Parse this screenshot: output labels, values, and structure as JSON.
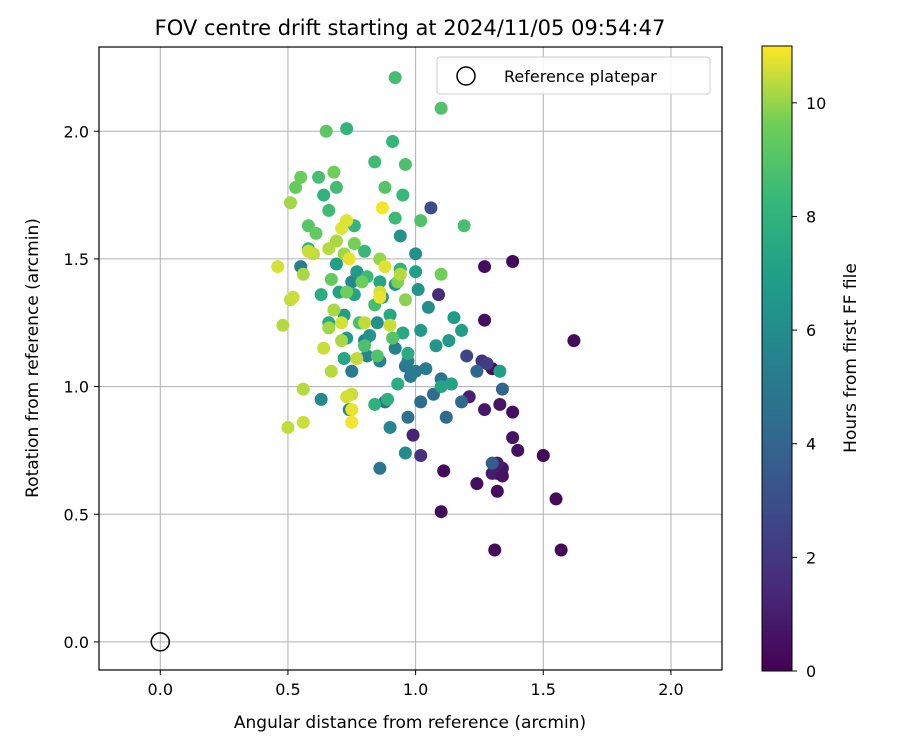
{
  "chart_data": {
    "type": "scatter",
    "title": "FOV centre drift starting at 2024/11/05 09:54:47",
    "xlabel": "Angular distance from reference (arcmin)",
    "ylabel": "Rotation from reference (arcmin)",
    "xlim": [
      -0.24,
      2.2
    ],
    "ylim": [
      -0.11,
      2.33
    ],
    "xticks": [
      0.0,
      0.5,
      1.0,
      1.5,
      2.0
    ],
    "xtick_labels": [
      "0.0",
      "0.5",
      "1.0",
      "1.5",
      "2.0"
    ],
    "yticks": [
      0.0,
      0.5,
      1.0,
      1.5,
      2.0
    ],
    "ytick_labels": [
      "0.0",
      "0.5",
      "1.0",
      "1.5",
      "2.0"
    ],
    "grid": true,
    "legend": {
      "position": "top-right",
      "label": "Reference platepar"
    },
    "reference_point": {
      "x": 0.0,
      "y": 0.0
    },
    "colorbar": {
      "label": "Hours from first FF file",
      "min": 0,
      "max": 11,
      "ticks": [
        0,
        2,
        4,
        6,
        8,
        10
      ],
      "tick_labels": [
        "0",
        "2",
        "4",
        "6",
        "8",
        "10"
      ],
      "colormap": "viridis"
    },
    "points": [
      [
        1.38,
        1.49,
        0.2
      ],
      [
        1.62,
        1.18,
        0.3
      ],
      [
        1.27,
        1.47,
        0.4
      ],
      [
        1.27,
        1.26,
        0.5
      ],
      [
        1.3,
        1.07,
        0.4
      ],
      [
        1.5,
        0.73,
        0.2
      ],
      [
        1.55,
        0.56,
        0.3
      ],
      [
        1.57,
        0.36,
        0.2
      ],
      [
        1.31,
        0.36,
        0.3
      ],
      [
        1.32,
        0.59,
        0.4
      ],
      [
        1.24,
        0.62,
        0.5
      ],
      [
        1.11,
        0.67,
        0.3
      ],
      [
        1.1,
        0.51,
        0.4
      ],
      [
        1.38,
        0.8,
        0.6
      ],
      [
        1.4,
        0.75,
        0.5
      ],
      [
        1.34,
        0.68,
        0.7
      ],
      [
        1.32,
        0.66,
        0.8
      ],
      [
        1.3,
        0.66,
        0.9
      ],
      [
        1.34,
        0.65,
        0.6
      ],
      [
        1.32,
        0.7,
        1.0
      ],
      [
        1.38,
        0.9,
        0.5
      ],
      [
        1.33,
        0.93,
        0.7
      ],
      [
        1.27,
        0.91,
        0.8
      ],
      [
        1.21,
        0.96,
        1.1
      ],
      [
        0.99,
        0.81,
        1.2
      ],
      [
        1.02,
        0.73,
        1.8
      ],
      [
        1.26,
        1.1,
        1.8
      ],
      [
        1.28,
        1.09,
        2.2
      ],
      [
        1.2,
        1.12,
        2.6
      ],
      [
        1.06,
        1.7,
        2.9
      ],
      [
        1.09,
        1.36,
        1.6
      ],
      [
        1.3,
        0.7,
        3.6
      ],
      [
        1.34,
        0.99,
        4.0
      ],
      [
        1.24,
        1.06,
        4.1
      ],
      [
        1.18,
        0.94,
        4.2
      ],
      [
        1.12,
        0.88,
        4.3
      ],
      [
        1.02,
        0.94,
        4.4
      ],
      [
        1.07,
        0.97,
        4.5
      ],
      [
        1.1,
        1.03,
        4.7
      ],
      [
        0.97,
        0.88,
        4.6
      ],
      [
        0.86,
        0.68,
        4.8
      ],
      [
        0.88,
        0.94,
        4.4
      ],
      [
        0.96,
        1.08,
        4.9
      ],
      [
        0.98,
        1.04,
        5.0
      ],
      [
        1.0,
        1.06,
        5.1
      ],
      [
        1.04,
        1.07,
        5.2
      ],
      [
        0.97,
        1.1,
        5.3
      ],
      [
        0.92,
        1.15,
        5.4
      ],
      [
        0.86,
        1.1,
        5.5
      ],
      [
        0.81,
        1.12,
        5.6
      ],
      [
        0.75,
        1.06,
        5.0
      ],
      [
        0.74,
        0.91,
        5.4
      ],
      [
        0.55,
        1.47,
        5.2
      ],
      [
        0.75,
        1.41,
        5.8
      ],
      [
        0.8,
        1.18,
        5.6
      ],
      [
        0.63,
        0.95,
        5.9
      ],
      [
        0.9,
        0.84,
        5.7
      ],
      [
        0.96,
        0.74,
        6.0
      ],
      [
        1.05,
        1.31,
        6.1
      ],
      [
        1.0,
        1.52,
        6.2
      ],
      [
        0.94,
        1.59,
        6.3
      ],
      [
        1.01,
        1.38,
        6.4
      ],
      [
        1.08,
        1.16,
        6.5
      ],
      [
        1.02,
        1.22,
        6.6
      ],
      [
        1.13,
        1.18,
        6.7
      ],
      [
        1.15,
        1.27,
        6.8
      ],
      [
        1.18,
        1.22,
        6.9
      ],
      [
        1.33,
        1.06,
        7.0
      ],
      [
        1.14,
        1.01,
        7.1
      ],
      [
        1.1,
        1.0,
        7.2
      ],
      [
        1.0,
        1.45,
        7.0
      ],
      [
        0.92,
        1.4,
        6.6
      ],
      [
        0.87,
        1.35,
        6.5
      ],
      [
        0.85,
        1.25,
        6.2
      ],
      [
        0.82,
        1.2,
        6.4
      ],
      [
        0.77,
        1.45,
        6.7
      ],
      [
        0.73,
        1.19,
        6.8
      ],
      [
        0.72,
        1.28,
        6.9
      ],
      [
        0.69,
        1.48,
        7.0
      ],
      [
        0.7,
        1.37,
        7.1
      ],
      [
        0.76,
        1.36,
        7.2
      ],
      [
        0.86,
        1.41,
        7.3
      ],
      [
        0.9,
        1.28,
        7.4
      ],
      [
        0.95,
        1.21,
        7.5
      ],
      [
        0.97,
        1.13,
        7.6
      ],
      [
        0.93,
        1.01,
        7.7
      ],
      [
        0.89,
        0.95,
        7.8
      ],
      [
        0.84,
        0.93,
        7.9
      ],
      [
        0.72,
        1.11,
        7.3
      ],
      [
        0.66,
        1.25,
        7.5
      ],
      [
        0.63,
        1.36,
        7.7
      ],
      [
        0.58,
        1.54,
        7.9
      ],
      [
        0.64,
        1.75,
        8.0
      ],
      [
        0.73,
        2.01,
        8.1
      ],
      [
        0.91,
        1.96,
        8.2
      ],
      [
        0.95,
        1.75,
        8.3
      ],
      [
        0.92,
        1.66,
        8.4
      ],
      [
        0.84,
        1.88,
        8.5
      ],
      [
        0.69,
        1.78,
        8.6
      ],
      [
        0.62,
        1.82,
        8.7
      ],
      [
        0.66,
        1.69,
        8.5
      ],
      [
        0.76,
        1.63,
        8.2
      ],
      [
        0.8,
        1.53,
        8.3
      ],
      [
        0.81,
        1.43,
        8.4
      ],
      [
        0.84,
        1.32,
        8.6
      ],
      [
        0.78,
        1.25,
        8.7
      ],
      [
        0.8,
        1.16,
        8.8
      ],
      [
        0.85,
        1.12,
        8.9
      ],
      [
        0.91,
        1.19,
        9.0
      ],
      [
        0.94,
        1.46,
        8.1
      ],
      [
        0.96,
        1.87,
        8.8
      ],
      [
        0.92,
        2.21,
        8.6
      ],
      [
        1.1,
        2.09,
        8.9
      ],
      [
        1.19,
        1.63,
        8.7
      ],
      [
        1.02,
        1.65,
        8.9
      ],
      [
        0.88,
        1.78,
        9.0
      ],
      [
        0.65,
        2.0,
        9.2
      ],
      [
        0.53,
        1.78,
        9.4
      ],
      [
        0.55,
        1.82,
        9.5
      ],
      [
        0.68,
        1.84,
        9.6
      ],
      [
        0.58,
        1.63,
        9.1
      ],
      [
        0.61,
        1.6,
        9.3
      ],
      [
        0.67,
        1.42,
        9.4
      ],
      [
        0.73,
        1.37,
        9.6
      ],
      [
        0.76,
        1.56,
        9.7
      ],
      [
        0.79,
        1.41,
        9.5
      ],
      [
        0.93,
        1.41,
        9.8
      ],
      [
        1.1,
        1.44,
        9.6
      ],
      [
        0.96,
        1.34,
        9.9
      ],
      [
        0.86,
        1.5,
        10.0
      ],
      [
        0.72,
        1.52,
        10.1
      ],
      [
        0.69,
        1.57,
        10.2
      ],
      [
        0.66,
        1.54,
        10.3
      ],
      [
        0.6,
        1.52,
        10.4
      ],
      [
        0.58,
        1.53,
        10.5
      ],
      [
        0.56,
        1.44,
        10.2
      ],
      [
        0.51,
        1.34,
        10.4
      ],
      [
        0.46,
        1.47,
        10.6
      ],
      [
        0.48,
        1.24,
        10.3
      ],
      [
        0.52,
        1.35,
        10.5
      ],
      [
        0.66,
        1.23,
        10.1
      ],
      [
        0.68,
        1.3,
        10.2
      ],
      [
        0.71,
        1.25,
        10.6
      ],
      [
        0.8,
        1.25,
        10.4
      ],
      [
        0.9,
        1.24,
        10.5
      ],
      [
        0.86,
        1.37,
        10.6
      ],
      [
        0.94,
        1.44,
        10.3
      ],
      [
        0.88,
        1.47,
        10.7
      ],
      [
        0.86,
        1.35,
        10.8
      ],
      [
        0.73,
        1.65,
        10.7
      ],
      [
        0.64,
        1.15,
        10.5
      ],
      [
        0.67,
        1.06,
        10.3
      ],
      [
        0.71,
        1.18,
        10.2
      ],
      [
        0.77,
        1.11,
        10.4
      ],
      [
        0.75,
        0.97,
        10.5
      ],
      [
        0.73,
        0.96,
        10.6
      ],
      [
        0.75,
        0.91,
        10.8
      ],
      [
        0.75,
        0.86,
        10.9
      ],
      [
        0.56,
        0.99,
        10.3
      ],
      [
        0.56,
        0.86,
        10.5
      ],
      [
        0.5,
        0.84,
        10.4
      ],
      [
        0.51,
        1.72,
        10.1
      ],
      [
        0.87,
        1.7,
        10.9
      ],
      [
        0.74,
        1.5,
        10.8
      ],
      [
        0.71,
        1.62,
        10.7
      ]
    ]
  }
}
